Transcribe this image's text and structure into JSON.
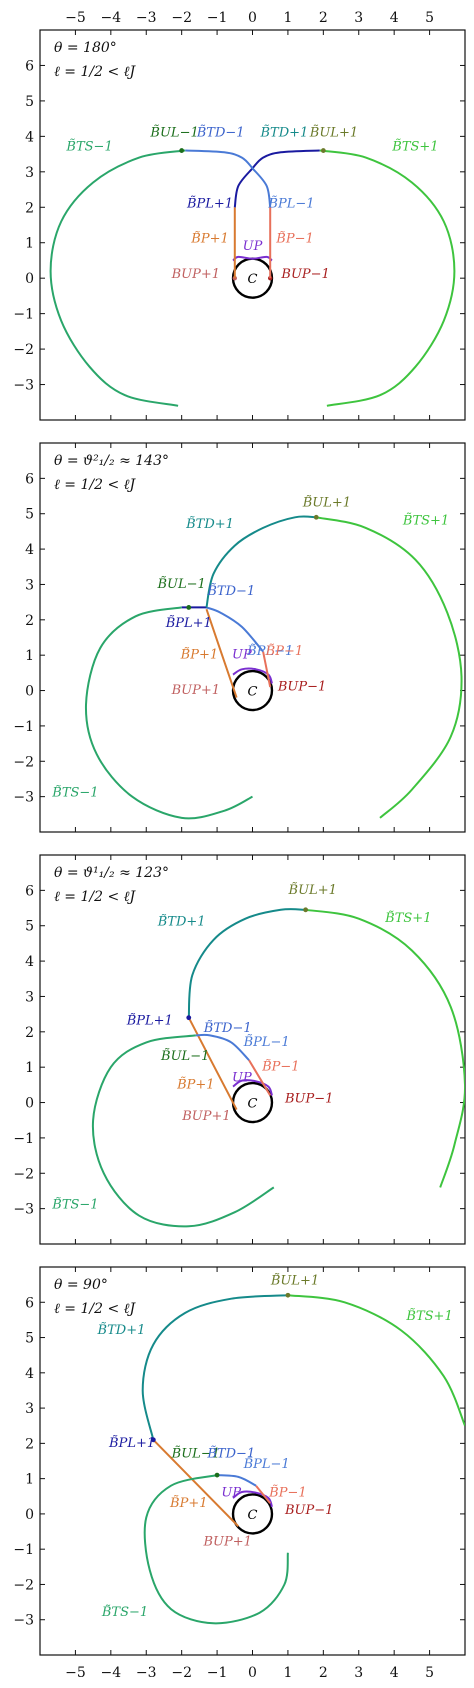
{
  "colors": {
    "C": "#000000",
    "UP": "#7a2fd0",
    "BUP_plus": "#c06060",
    "BUP_minus": "#a81e1e",
    "P_plus": "#d87a30",
    "P_minus": "#e8705a",
    "PL_plus": "#1a1aa0",
    "PL_minus": "#4a7ad6",
    "TD_plus": "#158a8a",
    "TD_minus": "#3b63cc",
    "UL_plus": "#6b7a2a",
    "UL_minus": "#1b6e1b",
    "TS_plus": "#3ec43e",
    "TS_minus": "#2aa66a"
  },
  "axis_ticks": {
    "x": [
      "−5",
      "−4",
      "−3",
      "−2",
      "−1",
      "0",
      "1",
      "2",
      "3",
      "4",
      "5"
    ],
    "y_p1": [
      "−3",
      "−2",
      "−1",
      "0",
      "1",
      "2",
      "3",
      "4",
      "5",
      "6"
    ],
    "y_p2": [
      "−3",
      "−2",
      "−1",
      "0",
      "1",
      "2",
      "3",
      "4",
      "5",
      "6"
    ],
    "y_p3": [
      "−3",
      "−2",
      "−1",
      "0",
      "1",
      "2",
      "3",
      "4",
      "5",
      "6"
    ],
    "y_p4": [
      "−3",
      "−2",
      "−1",
      "0",
      "1",
      "2",
      "3",
      "4",
      "5",
      "6"
    ]
  },
  "labels": {
    "C": "C",
    "UP": "UP",
    "BUP_plus": "BUP+1",
    "BUP_minus": "BUP−1",
    "P_plus": "B̃P+1",
    "P_minus": "B̃P−1",
    "PL_plus": "B̃PL+1",
    "PL_minus": "B̃PL−1",
    "TD_plus": "B̃TD+1",
    "TD_minus": "B̃TD−1",
    "UL_plus": "B̃UL+1",
    "UL_minus": "B̃UL−1",
    "TS_plus": "B̃TS+1",
    "TS_minus": "B̃TS−1"
  },
  "chart_data": [
    {
      "type": "line",
      "panel_text": [
        "θ = 180°",
        "ℓ = 1/2 < ℓJ"
      ],
      "xlim": [
        -6,
        6
      ],
      "ylim": [
        -4,
        7
      ],
      "grid": false,
      "series": [
        {
          "name": "C",
          "x": [
            0
          ],
          "y": [
            0
          ],
          "shape": "circle",
          "radius": 0.55
        },
        {
          "name": "UP",
          "x": [
            -0.55,
            -0.4,
            0,
            0.4,
            0.55
          ],
          "y": [
            0.5,
            0.6,
            0.55,
            0.6,
            0.5
          ]
        },
        {
          "name": "BUP+1",
          "x": [
            -0.5
          ],
          "y": [
            0
          ]
        },
        {
          "name": "BUP−1",
          "x": [
            0.5
          ],
          "y": [
            0
          ]
        },
        {
          "name": "B̃P+1",
          "x": [
            -0.5,
            -0.5
          ],
          "y": [
            0,
            2
          ]
        },
        {
          "name": "B̃P−1",
          "x": [
            0.5,
            0.5
          ],
          "y": [
            0,
            2
          ]
        },
        {
          "name": "B̃PL+1",
          "x": [
            -0.5,
            -0.4,
            0,
            0.3,
            0.8,
            1.9
          ],
          "y": [
            2,
            2.6,
            3.1,
            3.4,
            3.55,
            3.6
          ]
        },
        {
          "name": "B̃PL−1",
          "x": [
            0.5,
            0.4,
            0,
            -0.3,
            -0.8,
            -1.9
          ],
          "y": [
            2,
            2.6,
            3.1,
            3.4,
            3.55,
            3.6
          ]
        },
        {
          "name": "B̃TS+1",
          "x": [
            1.9,
            3.2,
            4.5,
            5.4,
            5.7,
            5.4,
            4.6,
            3.6,
            2.1
          ],
          "y": [
            3.6,
            3.4,
            2.7,
            1.6,
            0.2,
            -1.2,
            -2.5,
            -3.3,
            -3.6
          ]
        },
        {
          "name": "B̃TS−1",
          "x": [
            -1.9,
            -3.2,
            -4.5,
            -5.4,
            -5.7,
            -5.4,
            -4.6,
            -3.6,
            -2.1
          ],
          "y": [
            3.6,
            3.4,
            2.7,
            1.6,
            0.2,
            -1.2,
            -2.5,
            -3.3,
            -3.6
          ]
        }
      ],
      "markers": [
        {
          "name": "B̃UL−1",
          "x": -2,
          "y": 3.6
        },
        {
          "name": "B̃UL+1",
          "x": 2,
          "y": 3.6
        }
      ]
    },
    {
      "type": "line",
      "panel_text": [
        "θ = ϑ²₁/₂ ≈ 143°",
        "ℓ = 1/2 < ℓJ"
      ],
      "xlim": [
        -6,
        6
      ],
      "ylim": [
        -4,
        7
      ],
      "grid": false,
      "series": [
        {
          "name": "C",
          "x": [
            0
          ],
          "y": [
            0
          ],
          "shape": "circle",
          "radius": 0.55
        },
        {
          "name": "UP",
          "x": [
            -0.55,
            -0.3,
            0.1,
            0.45,
            0.55
          ],
          "y": [
            0.45,
            0.6,
            0.6,
            0.45,
            0.2
          ]
        },
        {
          "name": "B̃P+1",
          "x": [
            -0.45,
            -1.3
          ],
          "y": [
            -0.2,
            2.3
          ]
        },
        {
          "name": "B̃P−1",
          "x": [
            0.5,
            0.3
          ],
          "y": [
            0.1,
            1.1
          ]
        },
        {
          "name": "B̃PL−1",
          "x": [
            0.3,
            -0.3,
            -0.9,
            -1.3
          ],
          "y": [
            1.1,
            1.8,
            2.2,
            2.35
          ]
        },
        {
          "name": "B̃PL+1",
          "x": [
            -1.3,
            -1.8,
            -2.0
          ],
          "y": [
            2.35,
            2.35,
            2.35
          ]
        },
        {
          "name": "B̃TD+1",
          "x": [
            -1.3,
            -1.1,
            -0.5,
            0.3,
            1.2,
            1.8
          ],
          "y": [
            2.35,
            3.3,
            4.1,
            4.6,
            4.9,
            4.9
          ]
        },
        {
          "name": "B̃TS+1",
          "x": [
            1.8,
            3.2,
            4.6,
            5.5,
            5.9,
            5.6,
            4.5,
            3.6
          ],
          "y": [
            4.9,
            4.6,
            3.7,
            2.2,
            0.4,
            -1.3,
            -2.8,
            -3.6
          ]
        },
        {
          "name": "B̃TS−1",
          "x": [
            -2.0,
            -3.3,
            -4.3,
            -4.7,
            -4.4,
            -3.4,
            -2.0,
            -0.8,
            0
          ],
          "y": [
            2.35,
            2.1,
            1.2,
            -0.4,
            -1.8,
            -3.0,
            -3.6,
            -3.4,
            -3.0
          ]
        }
      ],
      "markers": [
        {
          "name": "B̃UL−1",
          "x": -1.8,
          "y": 2.35
        },
        {
          "name": "B̃UL+1",
          "x": 1.8,
          "y": 4.9
        }
      ]
    },
    {
      "type": "line",
      "panel_text": [
        "θ = ϑ¹₁/₂ ≈ 123°",
        "ℓ = 1/2 < ℓJ"
      ],
      "xlim": [
        -6,
        6
      ],
      "ylim": [
        -4,
        7
      ],
      "grid": false,
      "series": [
        {
          "name": "C",
          "x": [
            0
          ],
          "y": [
            0
          ],
          "shape": "circle",
          "radius": 0.55
        },
        {
          "name": "UP",
          "x": [
            -0.55,
            -0.3,
            0.1,
            0.45,
            0.55
          ],
          "y": [
            0.45,
            0.62,
            0.6,
            0.45,
            0.2
          ]
        },
        {
          "name": "B̃P+1",
          "x": [
            -0.45,
            -1.8
          ],
          "y": [
            -0.2,
            2.4
          ]
        },
        {
          "name": "B̃P−1",
          "x": [
            0.5,
            -0.1
          ],
          "y": [
            0.2,
            1.2
          ]
        },
        {
          "name": "B̃PL−1",
          "x": [
            -0.1,
            -0.6,
            -1.2,
            -1.6
          ],
          "y": [
            1.2,
            1.7,
            1.9,
            1.9
          ]
        },
        {
          "name": "B̃TD+1",
          "x": [
            -1.8,
            -1.7,
            -1.1,
            -0.2,
            0.8,
            1.5
          ],
          "y": [
            2.4,
            3.6,
            4.6,
            5.2,
            5.45,
            5.45
          ]
        },
        {
          "name": "B̃TS+1",
          "x": [
            1.5,
            3.0,
            4.5,
            5.6,
            6.0,
            5.7,
            5.3
          ],
          "y": [
            5.45,
            5.2,
            4.3,
            2.7,
            0.5,
            -1.2,
            -2.4
          ]
        },
        {
          "name": "B̃TS−1",
          "x": [
            -1.6,
            -3.0,
            -4.0,
            -4.5,
            -4.2,
            -3.2,
            -1.8,
            -0.5,
            0.6
          ],
          "y": [
            1.9,
            1.7,
            1.0,
            -0.5,
            -2.0,
            -3.2,
            -3.5,
            -3.1,
            -2.4
          ]
        }
      ],
      "markers": [
        {
          "name": "B̃PL+1",
          "x": -1.8,
          "y": 2.4
        },
        {
          "name": "B̃UL+1",
          "x": 1.5,
          "y": 5.45
        }
      ]
    },
    {
      "type": "line",
      "panel_text": [
        "θ = 90°",
        "ℓ = 1/2 < ℓJ"
      ],
      "xlim": [
        -6,
        6
      ],
      "ylim": [
        -4,
        7
      ],
      "grid": false,
      "series": [
        {
          "name": "C",
          "x": [
            0
          ],
          "y": [
            0
          ],
          "shape": "circle",
          "radius": 0.55
        },
        {
          "name": "UP",
          "x": [
            -0.55,
            -0.3,
            0.1,
            0.45,
            0.55
          ],
          "y": [
            0.45,
            0.62,
            0.6,
            0.45,
            0.2
          ]
        },
        {
          "name": "B̃P+1",
          "x": [
            -0.4,
            -2.8
          ],
          "y": [
            -0.35,
            2.1
          ]
        },
        {
          "name": "B̃P−1",
          "x": [
            0.5,
            0.1
          ],
          "y": [
            0.3,
            0.8
          ]
        },
        {
          "name": "B̃PL−1",
          "x": [
            0.1,
            -0.4,
            -1.0
          ],
          "y": [
            0.8,
            1.05,
            1.1
          ]
        },
        {
          "name": "B̃TD+1",
          "x": [
            -2.8,
            -3.1,
            -2.8,
            -1.9,
            -0.6,
            1.0
          ],
          "y": [
            2.1,
            3.5,
            4.8,
            5.7,
            6.1,
            6.2
          ]
        },
        {
          "name": "B̃TS+1",
          "x": [
            1.0,
            2.6,
            4.2,
            5.4,
            6.0
          ],
          "y": [
            6.2,
            6.0,
            5.2,
            3.9,
            2.5
          ]
        },
        {
          "name": "B̃TS−1",
          "x": [
            -1.0,
            -2.3,
            -3.0,
            -2.9,
            -2.3,
            -1.1,
            0.2,
            0.9,
            1.0
          ],
          "y": [
            1.1,
            0.8,
            -0.1,
            -1.6,
            -2.7,
            -3.1,
            -2.8,
            -2.0,
            -1.1
          ]
        }
      ],
      "markers": [
        {
          "name": "B̃PL+1",
          "x": -2.8,
          "y": 2.1
        },
        {
          "name": "B̃UL+1",
          "x": 1.0,
          "y": 6.2
        },
        {
          "name": "B̃UL−1",
          "x": -1.0,
          "y": 1.1
        }
      ]
    }
  ]
}
